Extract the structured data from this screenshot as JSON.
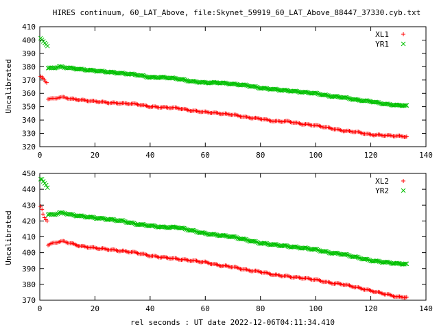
{
  "title": "HIRES continuum, 60_LAT_Above, file:Skynet_59919_60_LAT_Above_88447_37330.cyb.txt",
  "xlabel": "rel seconds : UT date 2022-12-06T04:11:34.410",
  "colors": {
    "red": "#ff0000",
    "green": "#00c000"
  },
  "chart_data": [
    {
      "type": "scatter",
      "ylabel": "Uncalibrated",
      "xlim": [
        0,
        140
      ],
      "ylim": [
        320,
        410
      ],
      "xticks": [
        0,
        20,
        40,
        60,
        80,
        100,
        120,
        140
      ],
      "yticks": [
        320,
        330,
        340,
        350,
        360,
        370,
        380,
        390,
        400,
        410
      ],
      "legend": "top-right",
      "series": [
        {
          "name": "XL1",
          "marker": "plus",
          "color": "#ff0000",
          "points": [
            [
              0.3,
              372.5
            ],
            [
              0.8,
              372
            ],
            [
              1.2,
              371
            ],
            [
              1.6,
              370
            ],
            [
              2,
              369
            ],
            [
              2.5,
              368
            ],
            [
              3,
              356
            ],
            [
              5,
              356
            ],
            [
              7,
              357
            ],
            [
              9,
              357
            ],
            [
              11,
              356
            ],
            [
              15,
              355
            ],
            [
              20,
              354
            ],
            [
              25,
              353
            ],
            [
              30,
              352.5
            ],
            [
              35,
              352
            ],
            [
              40,
              350
            ],
            [
              45,
              349.5
            ],
            [
              50,
              349
            ],
            [
              55,
              347
            ],
            [
              60,
              346
            ],
            [
              65,
              345
            ],
            [
              70,
              344
            ],
            [
              75,
              342
            ],
            [
              80,
              341
            ],
            [
              85,
              339
            ],
            [
              90,
              339
            ],
            [
              95,
              337
            ],
            [
              100,
              336
            ],
            [
              105,
              334
            ],
            [
              110,
              332
            ],
            [
              115,
              331
            ],
            [
              120,
              329
            ],
            [
              125,
              328.5
            ],
            [
              130,
              328
            ],
            [
              133,
              327.5
            ]
          ]
        },
        {
          "name": "YR1",
          "marker": "cross",
          "color": "#00c000",
          "points": [
            [
              0.3,
              401
            ],
            [
              0.8,
              400
            ],
            [
              1.3,
              399
            ],
            [
              1.8,
              398
            ],
            [
              2.3,
              397
            ],
            [
              2.8,
              395.5
            ],
            [
              3,
              379
            ],
            [
              5,
              379
            ],
            [
              7,
              380
            ],
            [
              9,
              379.5
            ],
            [
              11,
              379
            ],
            [
              15,
              378
            ],
            [
              20,
              377
            ],
            [
              25,
              376
            ],
            [
              30,
              375
            ],
            [
              35,
              374
            ],
            [
              40,
              372
            ],
            [
              45,
              372
            ],
            [
              50,
              371
            ],
            [
              55,
              369
            ],
            [
              60,
              368
            ],
            [
              65,
              368
            ],
            [
              70,
              367
            ],
            [
              75,
              366
            ],
            [
              80,
              364
            ],
            [
              85,
              363
            ],
            [
              90,
              362
            ],
            [
              95,
              361
            ],
            [
              100,
              360
            ],
            [
              105,
              358
            ],
            [
              110,
              357
            ],
            [
              115,
              355
            ],
            [
              120,
              354
            ],
            [
              125,
              352
            ],
            [
              130,
              351
            ],
            [
              133,
              351
            ]
          ]
        }
      ]
    },
    {
      "type": "scatter",
      "ylabel": "Uncalibrated",
      "xlim": [
        0,
        140
      ],
      "ylim": [
        370,
        450
      ],
      "xticks": [
        0,
        20,
        40,
        60,
        80,
        100,
        120,
        140
      ],
      "yticks": [
        370,
        380,
        390,
        400,
        410,
        420,
        430,
        440,
        450
      ],
      "legend": "top-right",
      "series": [
        {
          "name": "XL2",
          "marker": "plus",
          "color": "#ff0000",
          "points": [
            [
              0.3,
              429
            ],
            [
              0.8,
              427
            ],
            [
              1.2,
              424
            ],
            [
              1.7,
              422
            ],
            [
              2.2,
              421
            ],
            [
              2.7,
              420
            ],
            [
              3,
              405
            ],
            [
              5,
              406
            ],
            [
              7,
              407
            ],
            [
              9,
              407
            ],
            [
              11,
              406
            ],
            [
              15,
              404
            ],
            [
              20,
              403
            ],
            [
              25,
              402
            ],
            [
              30,
              401
            ],
            [
              35,
              400
            ],
            [
              40,
              398
            ],
            [
              45,
              397
            ],
            [
              50,
              396
            ],
            [
              55,
              395
            ],
            [
              60,
              394
            ],
            [
              65,
              392
            ],
            [
              70,
              391
            ],
            [
              75,
              389
            ],
            [
              80,
              388
            ],
            [
              85,
              386
            ],
            [
              90,
              385
            ],
            [
              95,
              384
            ],
            [
              100,
              383
            ],
            [
              105,
              381
            ],
            [
              110,
              380
            ],
            [
              115,
              378
            ],
            [
              120,
              376
            ],
            [
              125,
              374
            ],
            [
              130,
              372
            ],
            [
              133,
              372
            ]
          ]
        },
        {
          "name": "YR2",
          "marker": "cross",
          "color": "#00c000",
          "points": [
            [
              0.3,
              446
            ],
            [
              0.8,
              446
            ],
            [
              1.3,
              445
            ],
            [
              1.8,
              444
            ],
            [
              2.3,
              443
            ],
            [
              2.8,
              441
            ],
            [
              3,
              424
            ],
            [
              5,
              424
            ],
            [
              7,
              425
            ],
            [
              9,
              425
            ],
            [
              11,
              424
            ],
            [
              15,
              423
            ],
            [
              20,
              422
            ],
            [
              25,
              421
            ],
            [
              30,
              420
            ],
            [
              35,
              418
            ],
            [
              40,
              417
            ],
            [
              45,
              416
            ],
            [
              50,
              416
            ],
            [
              55,
              414
            ],
            [
              60,
              412
            ],
            [
              65,
              411
            ],
            [
              70,
              410
            ],
            [
              75,
              408
            ],
            [
              80,
              406
            ],
            [
              85,
              405
            ],
            [
              90,
              404
            ],
            [
              95,
              403
            ],
            [
              100,
              402
            ],
            [
              105,
              400
            ],
            [
              110,
              399
            ],
            [
              115,
              397
            ],
            [
              120,
              395
            ],
            [
              125,
              394
            ],
            [
              130,
              393
            ],
            [
              133,
              393
            ]
          ]
        }
      ]
    }
  ]
}
